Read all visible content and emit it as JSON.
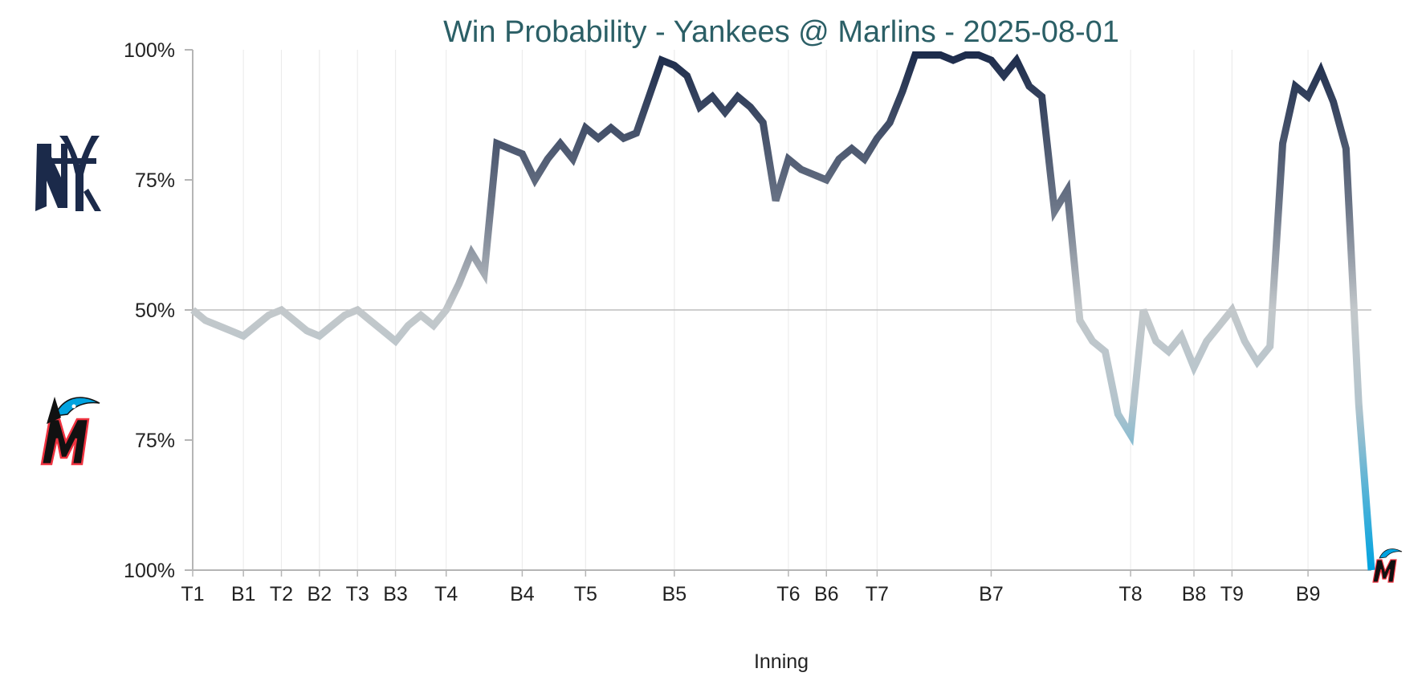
{
  "chart_data": {
    "type": "line",
    "title": "Win Probability - Yankees @ Marlins - 2025-08-01",
    "xlabel": "Inning",
    "ylabel": "",
    "y_tick_labels": [
      "100%",
      "75%",
      "50%",
      "75%",
      "100%"
    ],
    "x_tick_labels": [
      "T1",
      "B1",
      "T2",
      "B2",
      "T3",
      "B3",
      "T4",
      "B4",
      "T5",
      "B5",
      "T6",
      "B6",
      "T7",
      "B7",
      "T8",
      "B8",
      "T9",
      "B9"
    ],
    "x_tick_event_index": [
      0,
      4,
      7,
      10,
      13,
      16,
      20,
      26,
      31,
      38,
      47,
      50,
      54,
      63,
      74,
      79,
      82,
      88
    ],
    "grid": true,
    "top_team": {
      "name": "Yankees",
      "icon": "yankees-logo-icon",
      "color": "#1b2a4a"
    },
    "bottom_team": {
      "name": "Marlins",
      "icon": "marlins-logo-icon",
      "color": "#00a3e0"
    },
    "neutral_color": "#c3c8cb",
    "series": [
      {
        "values": [
          50,
          48,
          47,
          46,
          45,
          47,
          49,
          50,
          48,
          46,
          45,
          47,
          49,
          50,
          48,
          46,
          44,
          47,
          49,
          47,
          50,
          55,
          61,
          57,
          82,
          81,
          80,
          75,
          79,
          82,
          79,
          85,
          83,
          85,
          83,
          84,
          91,
          98,
          97,
          95,
          89,
          91,
          88,
          91,
          89,
          86,
          71,
          79,
          77,
          76,
          75,
          79,
          81,
          79,
          83,
          86,
          92,
          99,
          99,
          99,
          98,
          99,
          99,
          98,
          95,
          98,
          93,
          91,
          69,
          73,
          48,
          44,
          42,
          30,
          26,
          50,
          44,
          42,
          45,
          39,
          44,
          47,
          50,
          44,
          40,
          43,
          82,
          93,
          91,
          96,
          90,
          81,
          32,
          0
        ]
      }
    ]
  }
}
